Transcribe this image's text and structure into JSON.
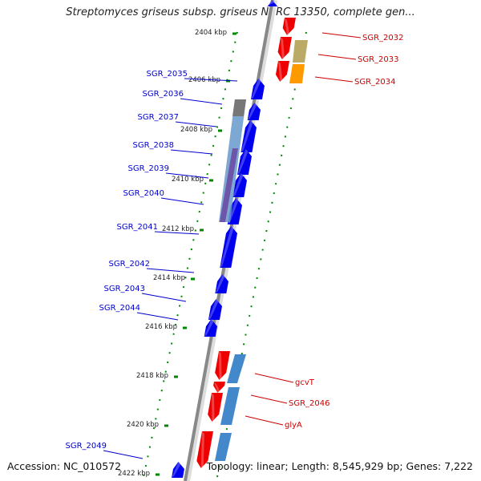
{
  "title": "Streptomyces griseus subsp. griseus NBRC 13350, complete gen...",
  "footer": {
    "accession": "Accession: NC_010572",
    "summary": "Topology: linear; Length: 8,545,929 bp; Genes: 7,222"
  },
  "colors": {
    "forward": "#0000ee",
    "reverse": "#ee0000",
    "label_forward": "#0000cc",
    "label_reverse": "#cc0000",
    "tick": "#008800",
    "backbone": "#888888"
  },
  "scale_ticks": [
    "2404 kbp",
    "2406 kbp",
    "2408 kbp",
    "2410 kbp",
    "2412 kbp",
    "2414 kbp",
    "2416 kbp",
    "2418 kbp",
    "2420 kbp",
    "2422 kbp"
  ],
  "left_labels": [
    "SGR_2035",
    "SGR_2036",
    "SGR_2037",
    "SGR_2038",
    "SGR_2039",
    "SGR_2040",
    "SGR_2041",
    "SGR_2042",
    "SGR_2043",
    "SGR_2044",
    "SGR_2049"
  ],
  "right_labels": [
    "SGR_2032",
    "SGR_2033",
    "SGR_2034",
    "gcvT",
    "SGR_2046",
    "glyA"
  ]
}
